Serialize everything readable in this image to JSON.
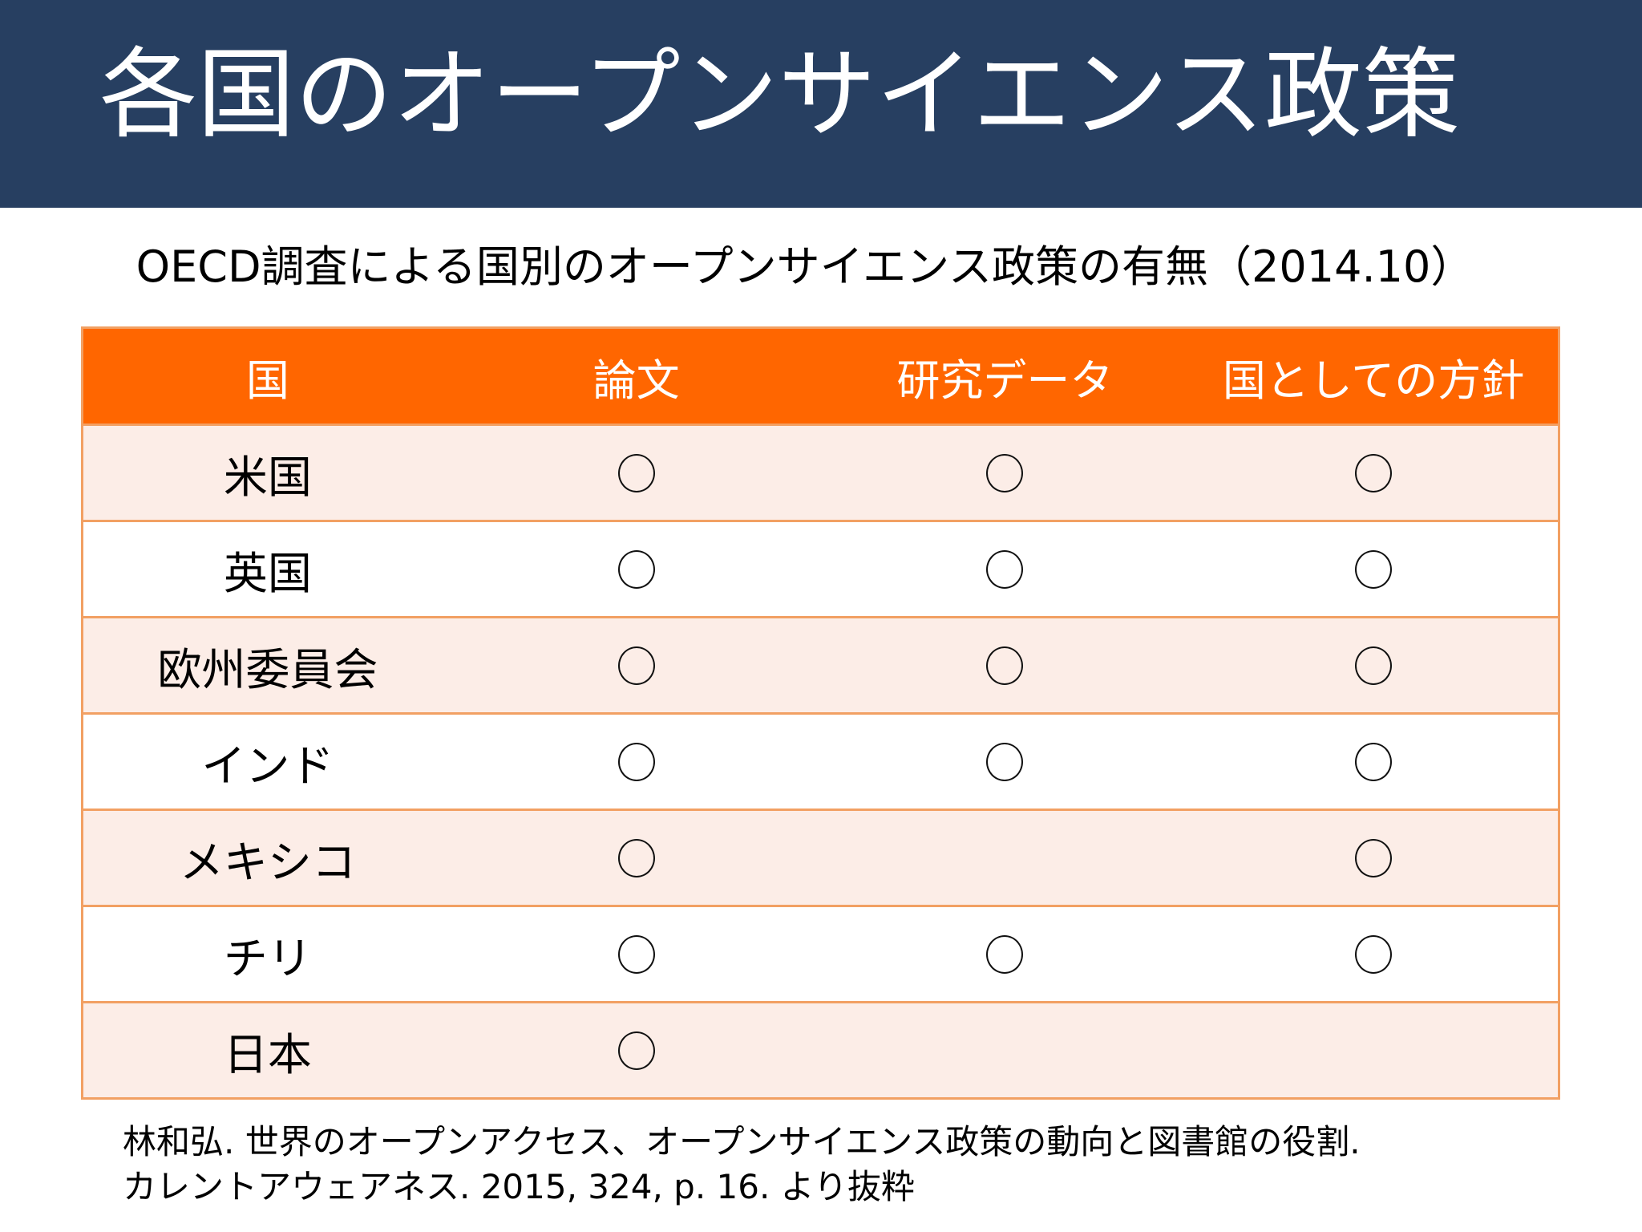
{
  "slide": {
    "title": "各国のオープンサイエンス政策",
    "subtitle": "OECD調査による国別のオープンサイエンス政策の有無（2014.10）"
  },
  "colors": {
    "title_band": "#273f61",
    "table_header": "#ff6600",
    "table_border": "#f2a063",
    "row_tint": "#fcede7"
  },
  "table": {
    "headers": [
      "国",
      "論文",
      "研究データ",
      "国としての方針"
    ],
    "mark_symbol": "○",
    "rows": [
      {
        "country": "米国",
        "papers": true,
        "research_data": true,
        "national_policy": true
      },
      {
        "country": "英国",
        "papers": true,
        "research_data": true,
        "national_policy": true
      },
      {
        "country": "欧州委員会",
        "papers": true,
        "research_data": true,
        "national_policy": true
      },
      {
        "country": "インド",
        "papers": true,
        "research_data": true,
        "national_policy": true
      },
      {
        "country": "メキシコ",
        "papers": true,
        "research_data": false,
        "national_policy": true
      },
      {
        "country": "チリ",
        "papers": true,
        "research_data": true,
        "national_policy": true
      },
      {
        "country": "日本",
        "papers": true,
        "research_data": false,
        "national_policy": false
      }
    ]
  },
  "footer": {
    "line1": "林和弘. 世界のオープンアクセス、オープンサイエンス政策の動向と図書館の役割.",
    "line2": "カレントアウェアネス. 2015,  324, p. 16. より抜粋"
  }
}
